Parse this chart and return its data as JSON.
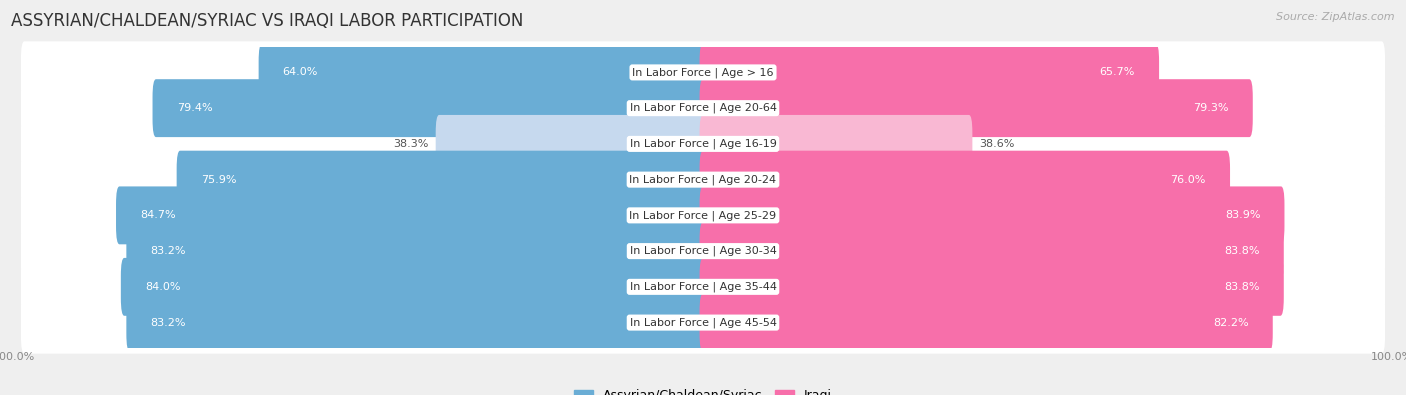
{
  "title": "ASSYRIAN/CHALDEAN/SYRIAC VS IRAQI LABOR PARTICIPATION",
  "source": "Source: ZipAtlas.com",
  "categories": [
    "In Labor Force | Age > 16",
    "In Labor Force | Age 20-64",
    "In Labor Force | Age 16-19",
    "In Labor Force | Age 20-24",
    "In Labor Force | Age 25-29",
    "In Labor Force | Age 30-34",
    "In Labor Force | Age 35-44",
    "In Labor Force | Age 45-54"
  ],
  "assyrian_values": [
    64.0,
    79.4,
    38.3,
    75.9,
    84.7,
    83.2,
    84.0,
    83.2
  ],
  "iraqi_values": [
    65.7,
    79.3,
    38.6,
    76.0,
    83.9,
    83.8,
    83.8,
    82.2
  ],
  "assyrian_color": "#6aadd5",
  "iraqi_color": "#f76faa",
  "assyrian_light_color": "#c6d9ee",
  "iraqi_light_color": "#f9b8d3",
  "bg_color": "#efefef",
  "row_bg_color": "#ffffff",
  "title_fontsize": 12,
  "label_fontsize": 8,
  "value_fontsize": 8,
  "legend_fontsize": 9,
  "tick_fontsize": 8
}
